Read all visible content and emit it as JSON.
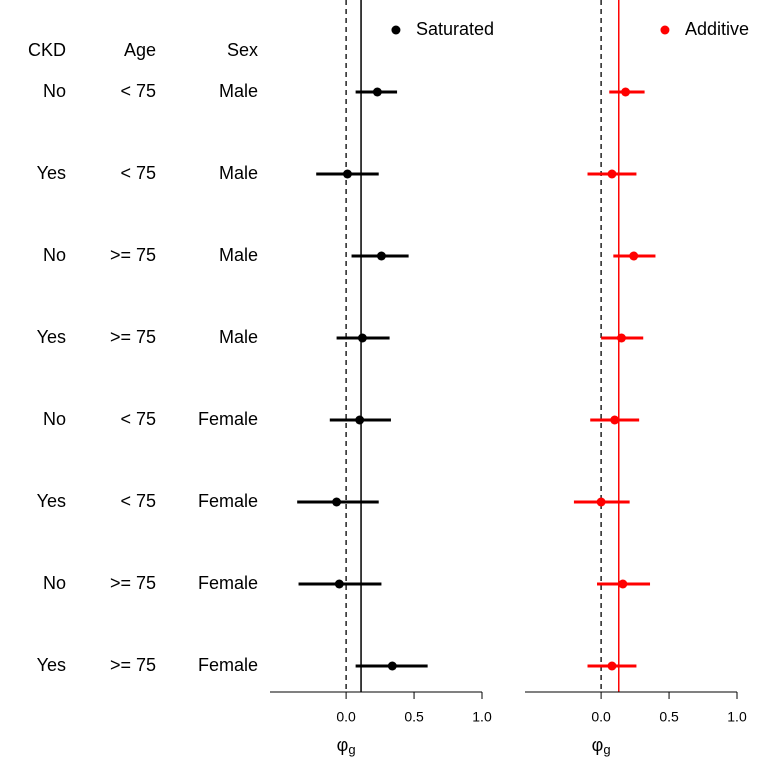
{
  "table": {
    "headers": [
      "CKD",
      "Age",
      "Sex"
    ],
    "rows": [
      [
        "No",
        "< 75",
        "Male"
      ],
      [
        "Yes",
        "< 75",
        "Male"
      ],
      [
        "No",
        ">= 75",
        "Male"
      ],
      [
        "Yes",
        ">= 75",
        "Male"
      ],
      [
        "No",
        "< 75",
        "Female"
      ],
      [
        "Yes",
        "< 75",
        "Female"
      ],
      [
        "No",
        ">= 75",
        "Female"
      ],
      [
        "Yes",
        ">= 75",
        "Female"
      ]
    ]
  },
  "chart_data": [
    {
      "type": "forest",
      "series": [
        {
          "name": "Saturated",
          "color": "#000000",
          "values": [
            0.23,
            0.01,
            0.26,
            0.12,
            0.1,
            -0.07,
            -0.05,
            0.34
          ],
          "lower": [
            0.07,
            -0.22,
            0.04,
            -0.07,
            -0.12,
            -0.36,
            -0.35,
            0.07
          ],
          "upper": [
            0.375,
            0.24,
            0.46,
            0.32,
            0.33,
            0.24,
            0.26,
            0.6
          ]
        }
      ],
      "zero_line": 0,
      "estimate_line": 0.11,
      "xlim": [
        -0.56,
        1.0
      ],
      "xticks": [
        {
          "value": 0,
          "label": "0.0"
        },
        {
          "value": 0.5,
          "label": "0.5"
        },
        {
          "value": 1,
          "label": "1.0"
        }
      ],
      "xlabel": "φ",
      "xlabel_subscript": "g",
      "legend": "top-right"
    },
    {
      "type": "forest",
      "series": [
        {
          "name": "Additive",
          "color": "#ff0000",
          "values": [
            0.18,
            0.08,
            0.24,
            0.15,
            0.1,
            0.0,
            0.16,
            0.08
          ],
          "lower": [
            0.06,
            -0.1,
            0.09,
            0.0,
            -0.08,
            -0.2,
            -0.03,
            -0.1
          ],
          "upper": [
            0.32,
            0.26,
            0.4,
            0.31,
            0.28,
            0.21,
            0.36,
            0.26
          ]
        }
      ],
      "zero_line": 0,
      "estimate_line": 0.13,
      "xlim": [
        -0.56,
        1.0
      ],
      "xticks": [
        {
          "value": 0,
          "label": "0.0"
        },
        {
          "value": 0.5,
          "label": "0.5"
        },
        {
          "value": 1,
          "label": "1.0"
        }
      ],
      "xlabel": "φ",
      "xlabel_subscript": "g",
      "legend": "top-right"
    }
  ]
}
